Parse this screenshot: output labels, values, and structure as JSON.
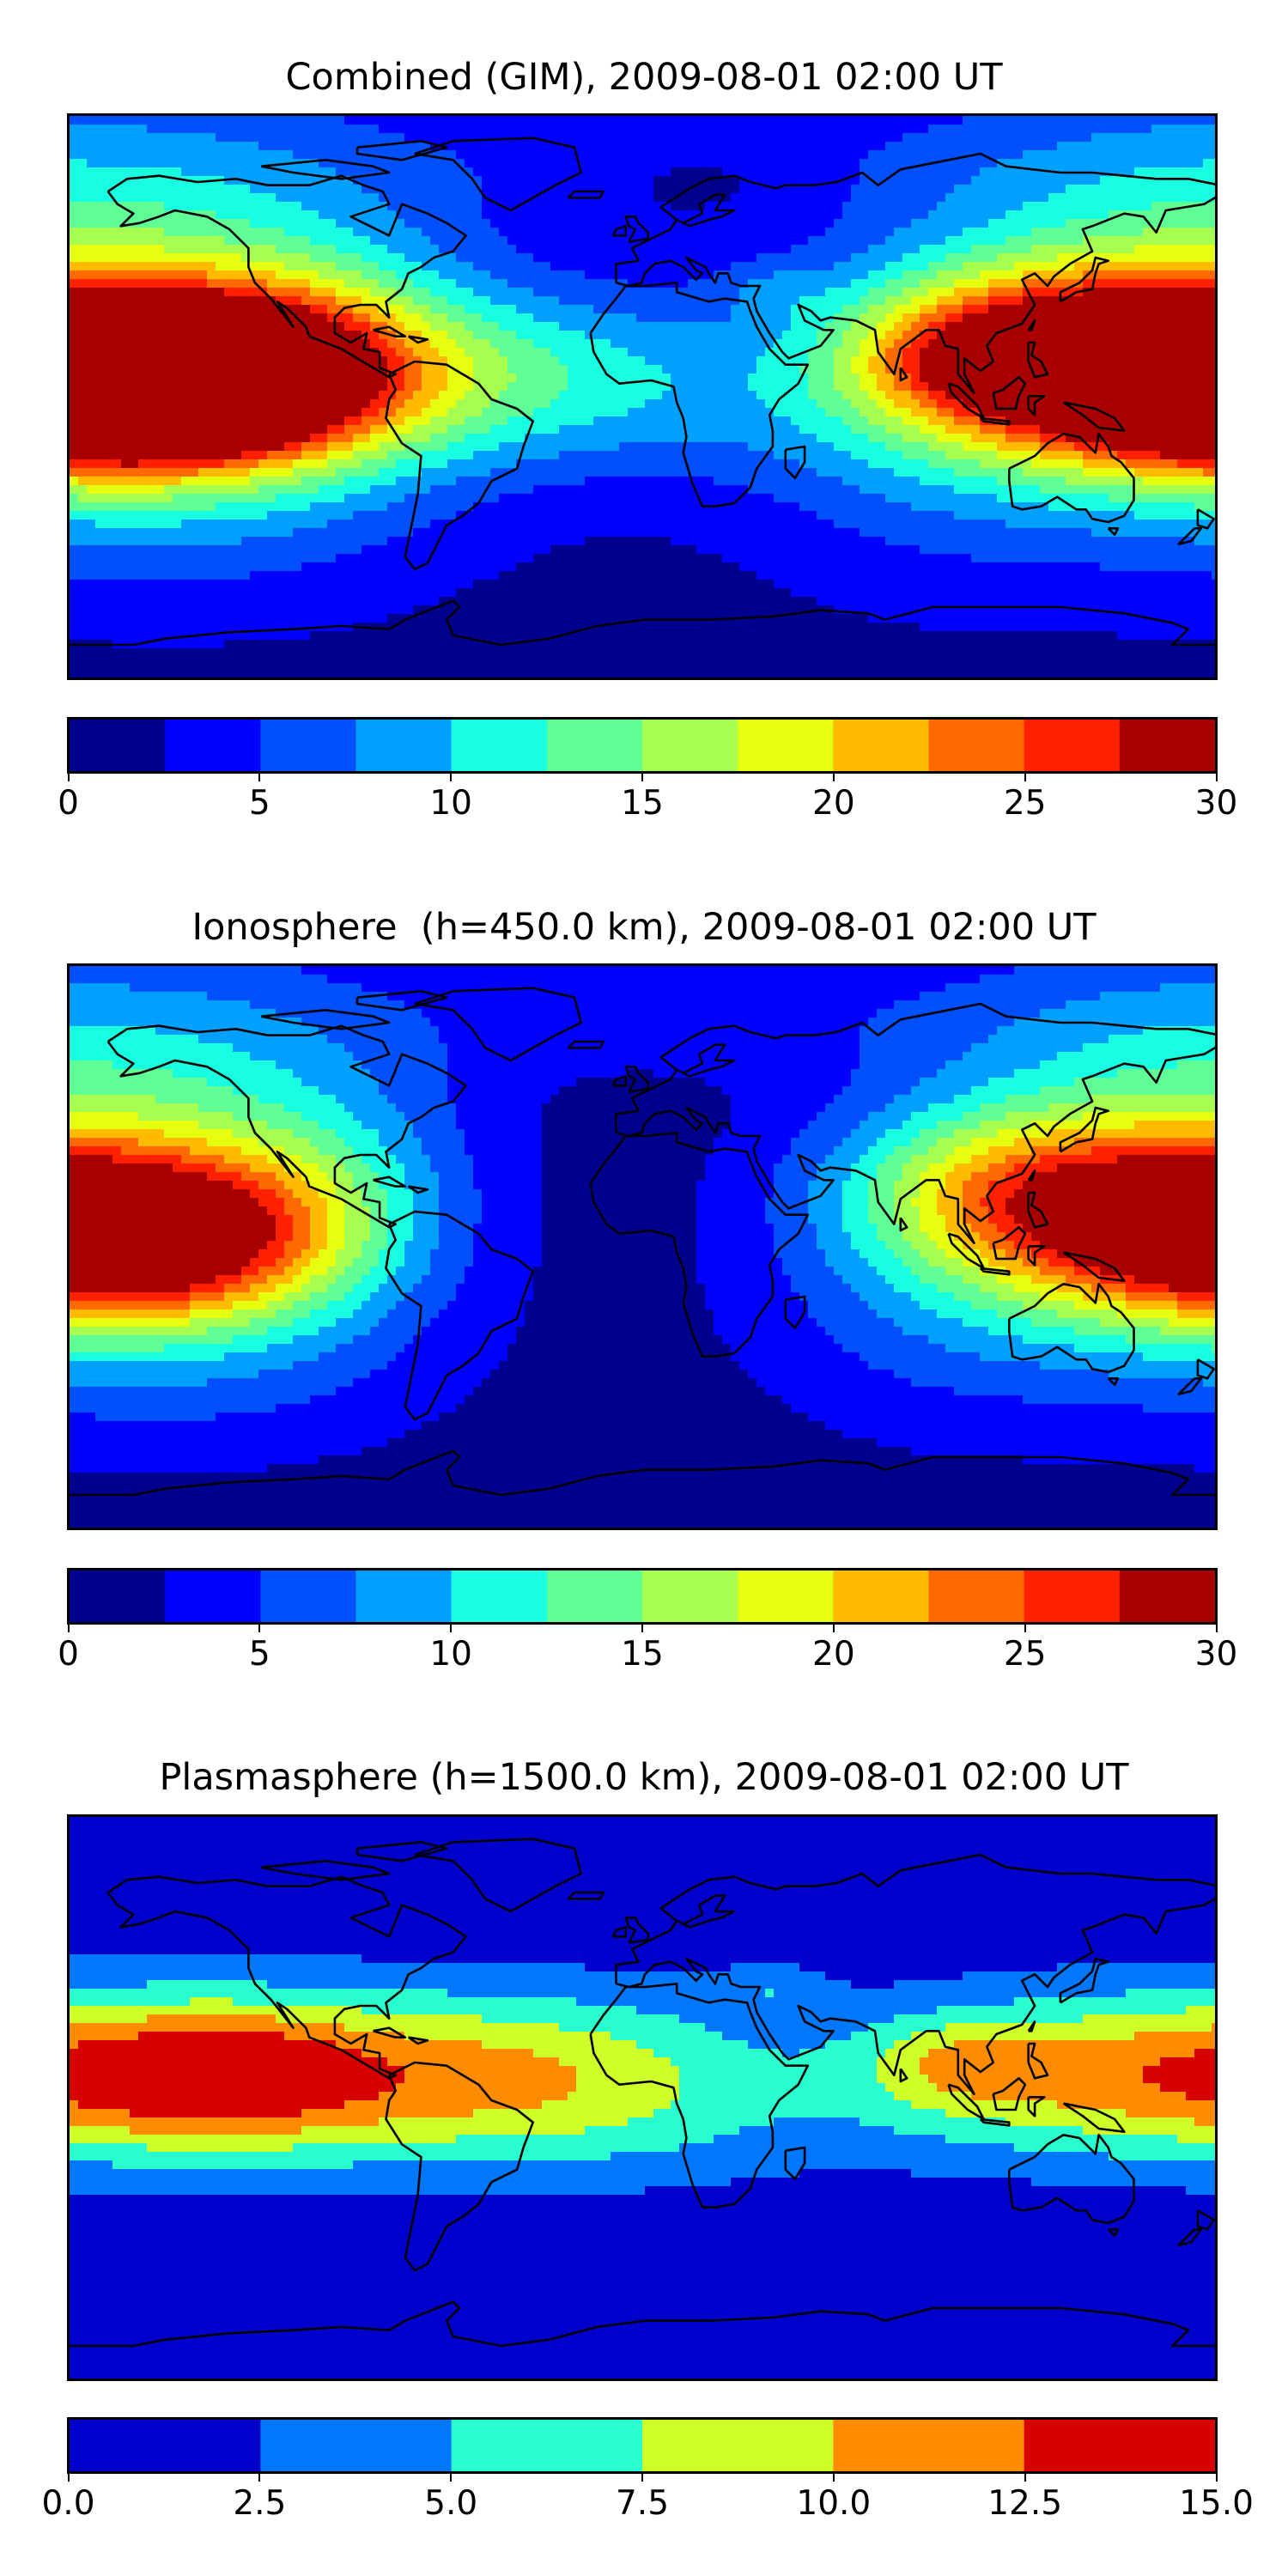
{
  "panels": [
    {
      "title": "Combined (GIM), 2009-08-01 02:00 UT",
      "colorbar": {
        "min": 0,
        "max": 30,
        "ticks": [
          "0",
          "5",
          "10",
          "15",
          "20",
          "25",
          "30"
        ],
        "colors": [
          "#00008f",
          "#0000ff",
          "#0050ff",
          "#00a0ff",
          "#17ffe0",
          "#60ff96",
          "#a6ff50",
          "#e6ff10",
          "#ffbb00",
          "#ff6a00",
          "#ff2000",
          "#a80000"
        ]
      },
      "field": "combined"
    },
    {
      "title": "Ionosphere  (h=450.0 km), 2009-08-01 02:00 UT",
      "colorbar": {
        "min": 0,
        "max": 30,
        "ticks": [
          "0",
          "5",
          "10",
          "15",
          "20",
          "25",
          "30"
        ],
        "colors": [
          "#00008f",
          "#0000ff",
          "#0050ff",
          "#00a0ff",
          "#17ffe0",
          "#60ff96",
          "#a6ff50",
          "#e6ff10",
          "#ffbb00",
          "#ff6a00",
          "#ff2000",
          "#a80000"
        ]
      },
      "field": "ionosphere"
    },
    {
      "title": "Plasmasphere (h=1500.0 km), 2009-08-01 02:00 UT",
      "colorbar": {
        "min": 0,
        "max": 15,
        "ticks": [
          "0.0",
          "2.5",
          "5.0",
          "7.5",
          "10.0",
          "12.5",
          "15.0"
        ],
        "colors": [
          "#0000cc",
          "#0077ff",
          "#29ffce",
          "#ceff29",
          "#ff8c00",
          "#d90000"
        ]
      },
      "field": "plasmasphere"
    }
  ]
}
